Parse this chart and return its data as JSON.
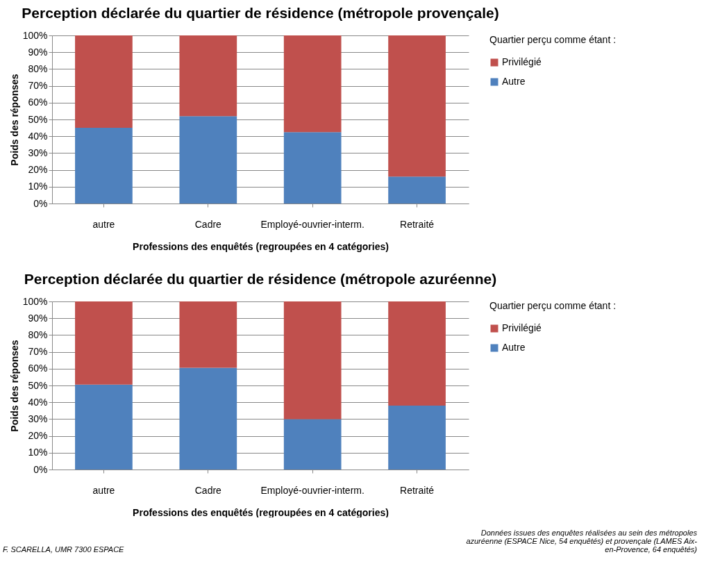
{
  "chart_data": [
    {
      "type": "bar",
      "title": "Perception déclarée du quartier de résidence (métropole provençale)",
      "xlabel": "Professions des enquêtés (regroupées en 4 catégories)",
      "ylabel": "Poids des réponses",
      "legend_title": "Quartier perçu comme étant :",
      "categories": [
        "autre",
        "Cadre",
        "Employé-ouvrier-interm.",
        "Retraité"
      ],
      "stacked": true,
      "legend": "right",
      "grid": "y",
      "ylim": [
        0,
        100
      ],
      "yticks": [
        {
          "value": 0,
          "label": "0%"
        },
        {
          "value": 10,
          "label": "10%"
        },
        {
          "value": 20,
          "label": "20%"
        },
        {
          "value": 30,
          "label": "30%"
        },
        {
          "value": 40,
          "label": "40%"
        },
        {
          "value": 50,
          "label": "50%"
        },
        {
          "value": 60,
          "label": "60%"
        },
        {
          "value": 70,
          "label": "70%"
        },
        {
          "value": 80,
          "label": "80%"
        },
        {
          "value": 90,
          "label": "90%"
        },
        {
          "value": 100,
          "label": "100%"
        }
      ],
      "series": [
        {
          "name": "Autre",
          "color": "#4f81bd",
          "values": [
            45,
            52,
            42.5,
            16
          ]
        },
        {
          "name": "Privilégié",
          "color": "#c0504d",
          "values": [
            55,
            48,
            57.5,
            84
          ]
        }
      ]
    },
    {
      "type": "bar",
      "title": "Perception déclarée du quartier de résidence (métropole azuréenne)",
      "xlabel": "Professions des enquêtés (regroupées en 4 catégories)",
      "ylabel": "Poids des réponses",
      "legend_title": "Quartier perçu comme étant :",
      "categories": [
        "autre",
        "Cadre",
        "Employé-ouvrier-interm.",
        "Retraité"
      ],
      "stacked": true,
      "legend": "right",
      "grid": "y",
      "ylim": [
        0,
        100
      ],
      "yticks": [
        {
          "value": 0,
          "label": "0%"
        },
        {
          "value": 10,
          "label": "10%"
        },
        {
          "value": 20,
          "label": "20%"
        },
        {
          "value": 30,
          "label": "30%"
        },
        {
          "value": 40,
          "label": "40%"
        },
        {
          "value": 50,
          "label": "50%"
        },
        {
          "value": 60,
          "label": "60%"
        },
        {
          "value": 70,
          "label": "70%"
        },
        {
          "value": 80,
          "label": "80%"
        },
        {
          "value": 90,
          "label": "90%"
        },
        {
          "value": 100,
          "label": "100%"
        }
      ],
      "series": [
        {
          "name": "Autre",
          "color": "#4f81bd",
          "values": [
            50.5,
            60.5,
            30,
            38
          ]
        },
        {
          "name": "Privilégié",
          "color": "#c0504d",
          "values": [
            49.5,
            39.5,
            70,
            62
          ]
        }
      ],
      "annotations": [
        "Données issues des enquêtes réalisées au sein des métropoles azuréenne (ESPACE Nice, 54 enquêtés) et provençale (LAMES Aix-en-Provence, 64 enquêtés)",
        "F. SCARELLA, UMR 7300 ESPACE"
      ]
    }
  ]
}
